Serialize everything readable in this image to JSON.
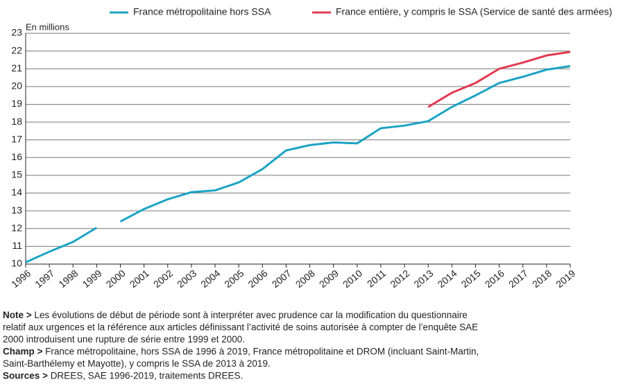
{
  "chart_data": {
    "type": "line",
    "y_axis_label": "En millions",
    "x": [
      1996,
      1997,
      1998,
      1999,
      2000,
      2001,
      2002,
      2003,
      2004,
      2005,
      2006,
      2007,
      2008,
      2009,
      2010,
      2011,
      2012,
      2013,
      2014,
      2015,
      2016,
      2017,
      2018,
      2019
    ],
    "series": [
      {
        "name": "France métropolitaine hors SSA",
        "color": "#1aa3c4",
        "values": [
          10.1,
          10.7,
          11.25,
          12.05,
          12.4,
          13.1,
          13.65,
          14.05,
          14.15,
          14.6,
          15.35,
          16.4,
          16.7,
          16.85,
          16.8,
          17.65,
          17.8,
          18.05,
          18.85,
          19.5,
          20.2,
          20.55,
          20.95,
          21.15
        ],
        "breaks": [
          [
            1999,
            2000
          ]
        ]
      },
      {
        "name": "France entière, y compris le SSA (Service de santé des armées)",
        "color": "#e23a50",
        "values": [
          null,
          null,
          null,
          null,
          null,
          null,
          null,
          null,
          null,
          null,
          null,
          null,
          null,
          null,
          null,
          null,
          null,
          18.85,
          19.65,
          20.2,
          21.0,
          21.35,
          21.75,
          21.95
        ]
      }
    ],
    "xlim": [
      1996,
      2019
    ],
    "xticks": [
      1996,
      1997,
      1998,
      1999,
      2000,
      2001,
      2002,
      2003,
      2004,
      2005,
      2006,
      2007,
      2008,
      2009,
      2010,
      2011,
      2012,
      2013,
      2014,
      2015,
      2016,
      2017,
      2018,
      2019
    ],
    "ylim": [
      10,
      23
    ],
    "yticks": [
      10,
      11,
      12,
      13,
      14,
      15,
      16,
      17,
      18,
      19,
      20,
      21,
      22,
      23
    ],
    "grid": true,
    "legend": "top"
  },
  "notes": [
    {
      "label": "Note >",
      "lines": [
        "Les évolutions de début de période sont à interpréter avec prudence car la modification du questionnaire",
        "relatif aux urgences et la référence aux articles définissant l’activité de soins autorisée à compter de l’enquête SAE",
        "2000 introduisent une rupture de série entre 1999 et 2000."
      ]
    },
    {
      "label": "Champ >",
      "lines": [
        "France métropolitaine, hors SSA de 1996 à 2019, France métropolitaine et DROM (incluant Saint-Martin,",
        "Saint-Barthélemy et Mayotte), y compris le SSA de 2013 à 2019."
      ]
    },
    {
      "label": "Sources >",
      "lines": [
        "DREES, SAE 1996-2019, traitements DREES."
      ]
    }
  ]
}
